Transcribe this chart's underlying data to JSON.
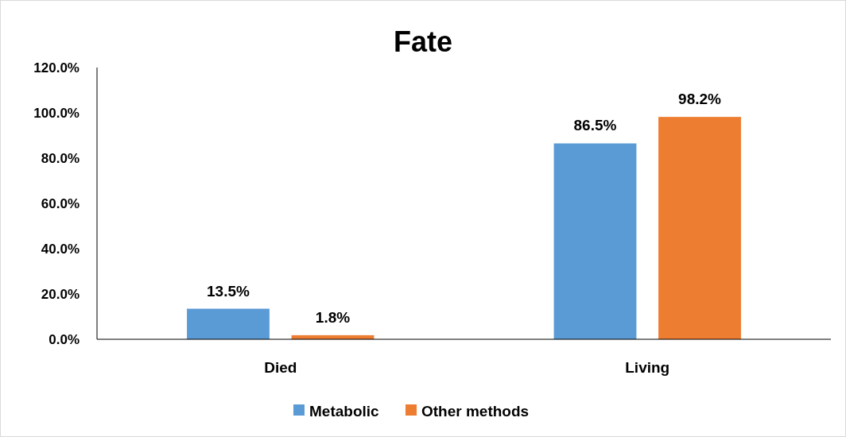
{
  "chart_data": {
    "type": "bar",
    "title": "Fate",
    "categories": [
      "Died",
      "Living"
    ],
    "series": [
      {
        "name": "Metabolic",
        "color": "#5b9bd5",
        "values": [
          13.5,
          86.5
        ],
        "value_labels": [
          "13.5%",
          "86.5%"
        ]
      },
      {
        "name": "Other methods",
        "color": "#ed7d31",
        "values": [
          1.8,
          98.2
        ],
        "value_labels": [
          "1.8%",
          "98.2%"
        ]
      }
    ],
    "ylim": [
      0,
      120
    ],
    "yticks": [
      {
        "value": 0,
        "label": "0.0%"
      },
      {
        "value": 20,
        "label": "20.0%"
      },
      {
        "value": 40,
        "label": "40.0%"
      },
      {
        "value": 60,
        "label": "60.0%"
      },
      {
        "value": 80,
        "label": "80.0%"
      },
      {
        "value": 100,
        "label": "100.0%"
      },
      {
        "value": 120,
        "label": "120.0%"
      }
    ],
    "grid": false,
    "legend": "bottom"
  }
}
